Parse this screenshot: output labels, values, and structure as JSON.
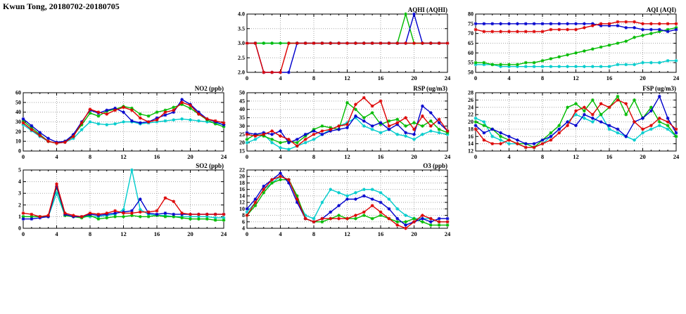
{
  "page": {
    "title": "Kwun Tong, 20180702-20180705"
  },
  "colors": {
    "blue": "#0000cd",
    "red": "#dd0000",
    "green": "#00bb00",
    "cyan": "#00cccc",
    "grid": "#a8a8a8",
    "axis": "#000000"
  },
  "chart_data": [
    {
      "id": "aqhi",
      "type": "line",
      "title": "AQHI (AQHI)",
      "xlim": [
        0,
        24
      ],
      "xticks": [
        0,
        4,
        8,
        12,
        16,
        20,
        24
      ],
      "ylim": [
        2,
        4
      ],
      "yticks": [
        2.0,
        2.5,
        3.0,
        3.5,
        4.0
      ],
      "ytick_labels": [
        "2.0",
        "2.5",
        "3.0",
        "3.5",
        "4.0"
      ],
      "series": [
        {
          "name": "cyan",
          "color": "cyan",
          "values": [
            3,
            3,
            3,
            3,
            3,
            3,
            3,
            3,
            3,
            3,
            3,
            3,
            3,
            3,
            3,
            3,
            3,
            3,
            3,
            3,
            3,
            3,
            3,
            3,
            3
          ]
        },
        {
          "name": "green",
          "color": "green",
          "values": [
            3,
            3,
            3,
            3,
            3,
            3,
            3,
            3,
            3,
            3,
            3,
            3,
            3,
            3,
            3,
            3,
            3,
            3,
            3,
            4,
            3,
            3,
            3,
            3,
            3
          ]
        },
        {
          "name": "blue",
          "color": "blue",
          "values": [
            3,
            3,
            2,
            2,
            2,
            2,
            3,
            3,
            3,
            3,
            3,
            3,
            3,
            3,
            3,
            3,
            3,
            3,
            3,
            3,
            4,
            3,
            3,
            3,
            3
          ]
        },
        {
          "name": "red",
          "color": "red",
          "values": [
            3,
            3,
            2,
            2,
            2,
            3,
            3,
            3,
            3,
            3,
            3,
            3,
            3,
            3,
            3,
            3,
            3,
            3,
            3,
            3,
            3,
            3,
            3,
            3,
            3
          ]
        }
      ]
    },
    {
      "id": "aqi",
      "type": "line",
      "title": "AQI (AQI)",
      "xlim": [
        0,
        24
      ],
      "xticks": [
        0,
        4,
        8,
        12,
        16,
        20,
        24
      ],
      "ylim": [
        50,
        80
      ],
      "yticks": [
        50,
        55,
        60,
        65,
        70,
        75,
        80
      ],
      "series": [
        {
          "name": "cyan",
          "color": "cyan",
          "values": [
            54,
            54,
            54,
            53,
            53,
            53,
            53,
            53,
            53,
            53,
            53,
            53,
            53,
            53,
            53,
            53,
            53,
            54,
            54,
            54,
            55,
            55,
            55,
            56,
            56
          ]
        },
        {
          "name": "green",
          "color": "green",
          "values": [
            55,
            55,
            54,
            54,
            54,
            54,
            55,
            55,
            56,
            57,
            58,
            59,
            60,
            61,
            62,
            63,
            64,
            65,
            66,
            68,
            69,
            70,
            71,
            72,
            73
          ]
        },
        {
          "name": "blue",
          "color": "blue",
          "values": [
            75,
            75,
            75,
            75,
            75,
            75,
            75,
            75,
            75,
            75,
            75,
            75,
            75,
            75,
            75,
            74,
            74,
            74,
            73,
            73,
            72,
            72,
            72,
            71,
            72
          ]
        },
        {
          "name": "red",
          "color": "red",
          "values": [
            72,
            71,
            71,
            71,
            71,
            71,
            71,
            71,
            71,
            72,
            72,
            72,
            72,
            73,
            74,
            75,
            75,
            76,
            76,
            76,
            75,
            75,
            75,
            75,
            75
          ]
        }
      ]
    },
    {
      "id": "no2",
      "type": "line",
      "title": "NO2 (ppb)",
      "xlim": [
        0,
        24
      ],
      "xticks": [
        0,
        4,
        8,
        12,
        16,
        20,
        24
      ],
      "ylim": [
        0,
        60
      ],
      "yticks": [
        0,
        10,
        20,
        30,
        40,
        50,
        60
      ],
      "series": [
        {
          "name": "cyan",
          "color": "cyan",
          "values": [
            27,
            21,
            15,
            10,
            8,
            9,
            13,
            22,
            30,
            28,
            27,
            28,
            30,
            30,
            28,
            29,
            30,
            31,
            32,
            33,
            32,
            31,
            30,
            29,
            27
          ]
        },
        {
          "name": "green",
          "color": "green",
          "values": [
            31,
            24,
            17,
            10,
            8,
            10,
            16,
            27,
            39,
            36,
            41,
            43,
            46,
            44,
            38,
            36,
            40,
            42,
            45,
            48,
            44,
            38,
            32,
            28,
            25
          ]
        },
        {
          "name": "blue",
          "color": "blue",
          "values": [
            33,
            26,
            19,
            13,
            9,
            10,
            17,
            30,
            42,
            39,
            42,
            44,
            40,
            31,
            29,
            30,
            34,
            37,
            40,
            53,
            48,
            40,
            33,
            30,
            27
          ]
        },
        {
          "name": "red",
          "color": "red",
          "values": [
            29,
            22,
            16,
            10,
            8,
            9,
            15,
            29,
            43,
            40,
            38,
            42,
            45,
            42,
            34,
            30,
            32,
            40,
            42,
            50,
            47,
            38,
            33,
            31,
            29
          ]
        }
      ]
    },
    {
      "id": "rsp",
      "type": "line",
      "title": "RSP (ug/m3)",
      "xlim": [
        0,
        24
      ],
      "xticks": [
        0,
        4,
        8,
        12,
        16,
        20,
        24
      ],
      "ylim": [
        15,
        50
      ],
      "yticks": [
        15,
        20,
        25,
        30,
        35,
        40,
        45,
        50
      ],
      "series": [
        {
          "name": "cyan",
          "color": "cyan",
          "values": [
            20,
            22,
            25,
            20,
            17,
            16,
            18,
            20,
            22,
            25,
            28,
            30,
            32,
            35,
            30,
            28,
            26,
            28,
            25,
            24,
            22,
            25,
            27,
            26,
            25
          ]
        },
        {
          "name": "green",
          "color": "green",
          "values": [
            22,
            25,
            24,
            22,
            20,
            21,
            20,
            24,
            28,
            30,
            29,
            28,
            44,
            40,
            35,
            38,
            31,
            33,
            34,
            30,
            32,
            30,
            33,
            28,
            26
          ]
        },
        {
          "name": "blue",
          "color": "blue",
          "values": [
            26,
            25,
            26,
            25,
            27,
            20,
            22,
            25,
            27,
            25,
            27,
            28,
            29,
            36,
            33,
            30,
            32,
            28,
            31,
            26,
            25,
            42,
            38,
            32,
            27
          ]
        },
        {
          "name": "red",
          "color": "red",
          "values": [
            25,
            24,
            25,
            27,
            24,
            22,
            18,
            22,
            25,
            27,
            28,
            30,
            31,
            43,
            47,
            42,
            45,
            30,
            32,
            35,
            28,
            36,
            30,
            34,
            27
          ]
        }
      ]
    },
    {
      "id": "fsp",
      "type": "line",
      "title": "FSP (ug/m3)",
      "xlim": [
        0,
        24
      ],
      "xticks": [
        0,
        4,
        8,
        12,
        16,
        20,
        24
      ],
      "ylim": [
        12,
        28
      ],
      "yticks": [
        12,
        14,
        16,
        18,
        20,
        22,
        24,
        26,
        28
      ],
      "series": [
        {
          "name": "cyan",
          "color": "cyan",
          "values": [
            21,
            20,
            16,
            15,
            14,
            14,
            13,
            13,
            14,
            16,
            18,
            20,
            22,
            21,
            20,
            22,
            18,
            17,
            16,
            15,
            17,
            18,
            19,
            18,
            16
          ]
        },
        {
          "name": "green",
          "color": "green",
          "values": [
            20,
            19,
            18,
            16,
            15,
            14,
            14,
            13,
            15,
            17,
            19,
            24,
            25,
            23,
            26,
            22,
            24,
            27,
            22,
            26,
            21,
            24,
            20,
            19,
            16
          ]
        },
        {
          "name": "blue",
          "color": "blue",
          "values": [
            19,
            17,
            18,
            17,
            16,
            15,
            14,
            14,
            15,
            16,
            18,
            20,
            19,
            22,
            21,
            20,
            19,
            18,
            16,
            20,
            21,
            23,
            27,
            21,
            17
          ]
        },
        {
          "name": "red",
          "color": "red",
          "values": [
            18,
            15,
            14,
            14,
            15,
            14,
            13,
            13,
            14,
            15,
            17,
            19,
            23,
            24,
            22,
            25,
            24,
            26,
            25,
            20,
            18,
            19,
            21,
            20,
            18
          ]
        }
      ]
    },
    {
      "id": "so2",
      "type": "line",
      "title": "SO2 (ppb)",
      "xlim": [
        0,
        24
      ],
      "xticks": [
        0,
        4,
        8,
        12,
        16,
        20,
        24
      ],
      "ylim": [
        0,
        5
      ],
      "yticks": [
        0,
        1,
        2,
        3,
        4,
        5
      ],
      "series": [
        {
          "name": "cyan",
          "color": "cyan",
          "values": [
            1.0,
            1.0,
            1.0,
            1.0,
            3.0,
            1.1,
            1.0,
            1.0,
            1.0,
            1.0,
            1.1,
            1.2,
            1.6,
            5.0,
            1.6,
            1.2,
            1.1,
            1.1,
            1.0,
            1.0,
            1.0,
            1.0,
            1.0,
            0.9,
            0.9
          ]
        },
        {
          "name": "green",
          "color": "green",
          "values": [
            1.0,
            1.0,
            1.0,
            1.0,
            3.5,
            1.1,
            1.0,
            0.9,
            1.1,
            0.8,
            0.9,
            1.0,
            1.0,
            1.1,
            1.0,
            1.0,
            1.1,
            1.0,
            1.0,
            0.9,
            0.8,
            0.8,
            0.8,
            0.7,
            0.7
          ]
        },
        {
          "name": "blue",
          "color": "blue",
          "values": [
            0.8,
            0.8,
            0.9,
            1.0,
            3.6,
            1.2,
            1.0,
            1.0,
            1.2,
            1.1,
            1.2,
            1.3,
            1.4,
            1.5,
            2.5,
            1.3,
            1.2,
            1.3,
            1.2,
            1.2,
            1.2,
            1.2,
            1.2,
            1.2,
            1.2
          ]
        },
        {
          "name": "red",
          "color": "red",
          "values": [
            1.3,
            1.2,
            1.0,
            1.1,
            3.8,
            1.3,
            1.1,
            1.0,
            1.3,
            1.2,
            1.3,
            1.5,
            1.3,
            1.3,
            1.4,
            1.4,
            1.5,
            2.6,
            2.3,
            1.3,
            1.2,
            1.2,
            1.2,
            1.2,
            1.2
          ]
        }
      ]
    },
    {
      "id": "o3",
      "type": "line",
      "title": "O3 (ppb)",
      "xlim": [
        0,
        24
      ],
      "xticks": [
        0,
        4,
        8,
        12,
        16,
        20,
        24
      ],
      "ylim": [
        4,
        22
      ],
      "yticks": [
        4,
        6,
        8,
        10,
        12,
        14,
        16,
        18,
        20,
        22
      ],
      "series": [
        {
          "name": "cyan",
          "color": "cyan",
          "values": [
            9,
            12,
            16,
            18,
            20,
            19,
            13,
            8,
            7,
            12,
            16,
            15,
            14,
            15,
            16,
            16,
            15,
            13,
            10,
            8,
            7,
            7,
            7,
            6,
            6
          ]
        },
        {
          "name": "green",
          "color": "green",
          "values": [
            8,
            11,
            15,
            18,
            19,
            19,
            14,
            7,
            6,
            6,
            7,
            8,
            7,
            7,
            8,
            7,
            8,
            7,
            6,
            6,
            7,
            6,
            5,
            5,
            5
          ]
        },
        {
          "name": "blue",
          "color": "blue",
          "values": [
            10,
            13,
            17,
            19,
            21,
            18,
            12,
            7,
            6,
            7,
            9,
            11,
            13,
            13,
            14,
            13,
            12,
            10,
            7,
            5,
            6,
            7,
            6,
            7,
            7
          ]
        },
        {
          "name": "red",
          "color": "red",
          "values": [
            8,
            12,
            16,
            19,
            20,
            19,
            13,
            7,
            6,
            7,
            7,
            7,
            7,
            8,
            9,
            11,
            9,
            7,
            5,
            4,
            6,
            8,
            7,
            6,
            6
          ]
        }
      ]
    }
  ]
}
